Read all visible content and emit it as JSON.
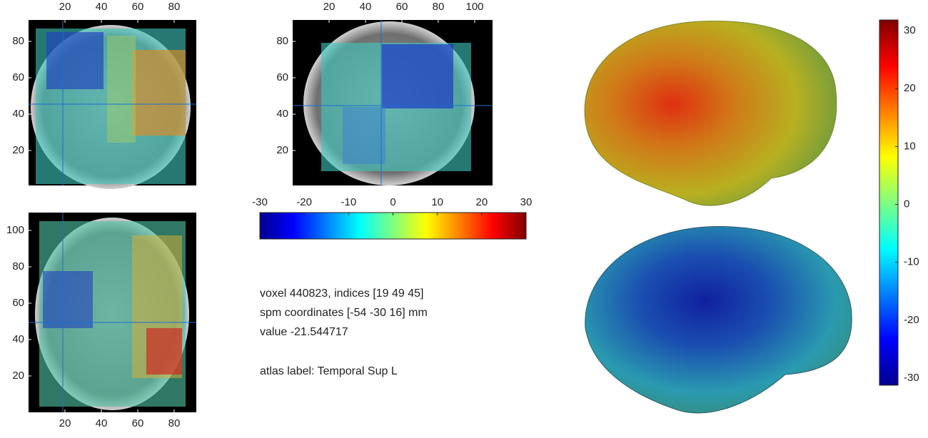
{
  "panels": [
    {
      "xticks": [
        20,
        40,
        60,
        80
      ],
      "yticks": [
        20,
        40,
        60,
        80
      ]
    },
    {
      "xticks": [
        20,
        40,
        60,
        80,
        100
      ],
      "yticks": [
        20,
        40,
        60,
        80
      ]
    },
    {
      "xticks": [
        20,
        40,
        60,
        80
      ],
      "yticks": [
        20,
        40,
        60,
        80,
        100
      ]
    }
  ],
  "colorbar_horizontal": {
    "ticks": [
      -30,
      -20,
      -10,
      0,
      10,
      20,
      30
    ]
  },
  "colorbar_vertical": {
    "ticks": [
      -30,
      -20,
      -10,
      0,
      10,
      20,
      30
    ]
  },
  "info": {
    "lines": [
      "voxel 440823, indices [19 49 45]",
      "spm coordinates [-54 -30 16] mm",
      "value -21.544717",
      "atlas label: Temporal Sup L"
    ]
  }
}
